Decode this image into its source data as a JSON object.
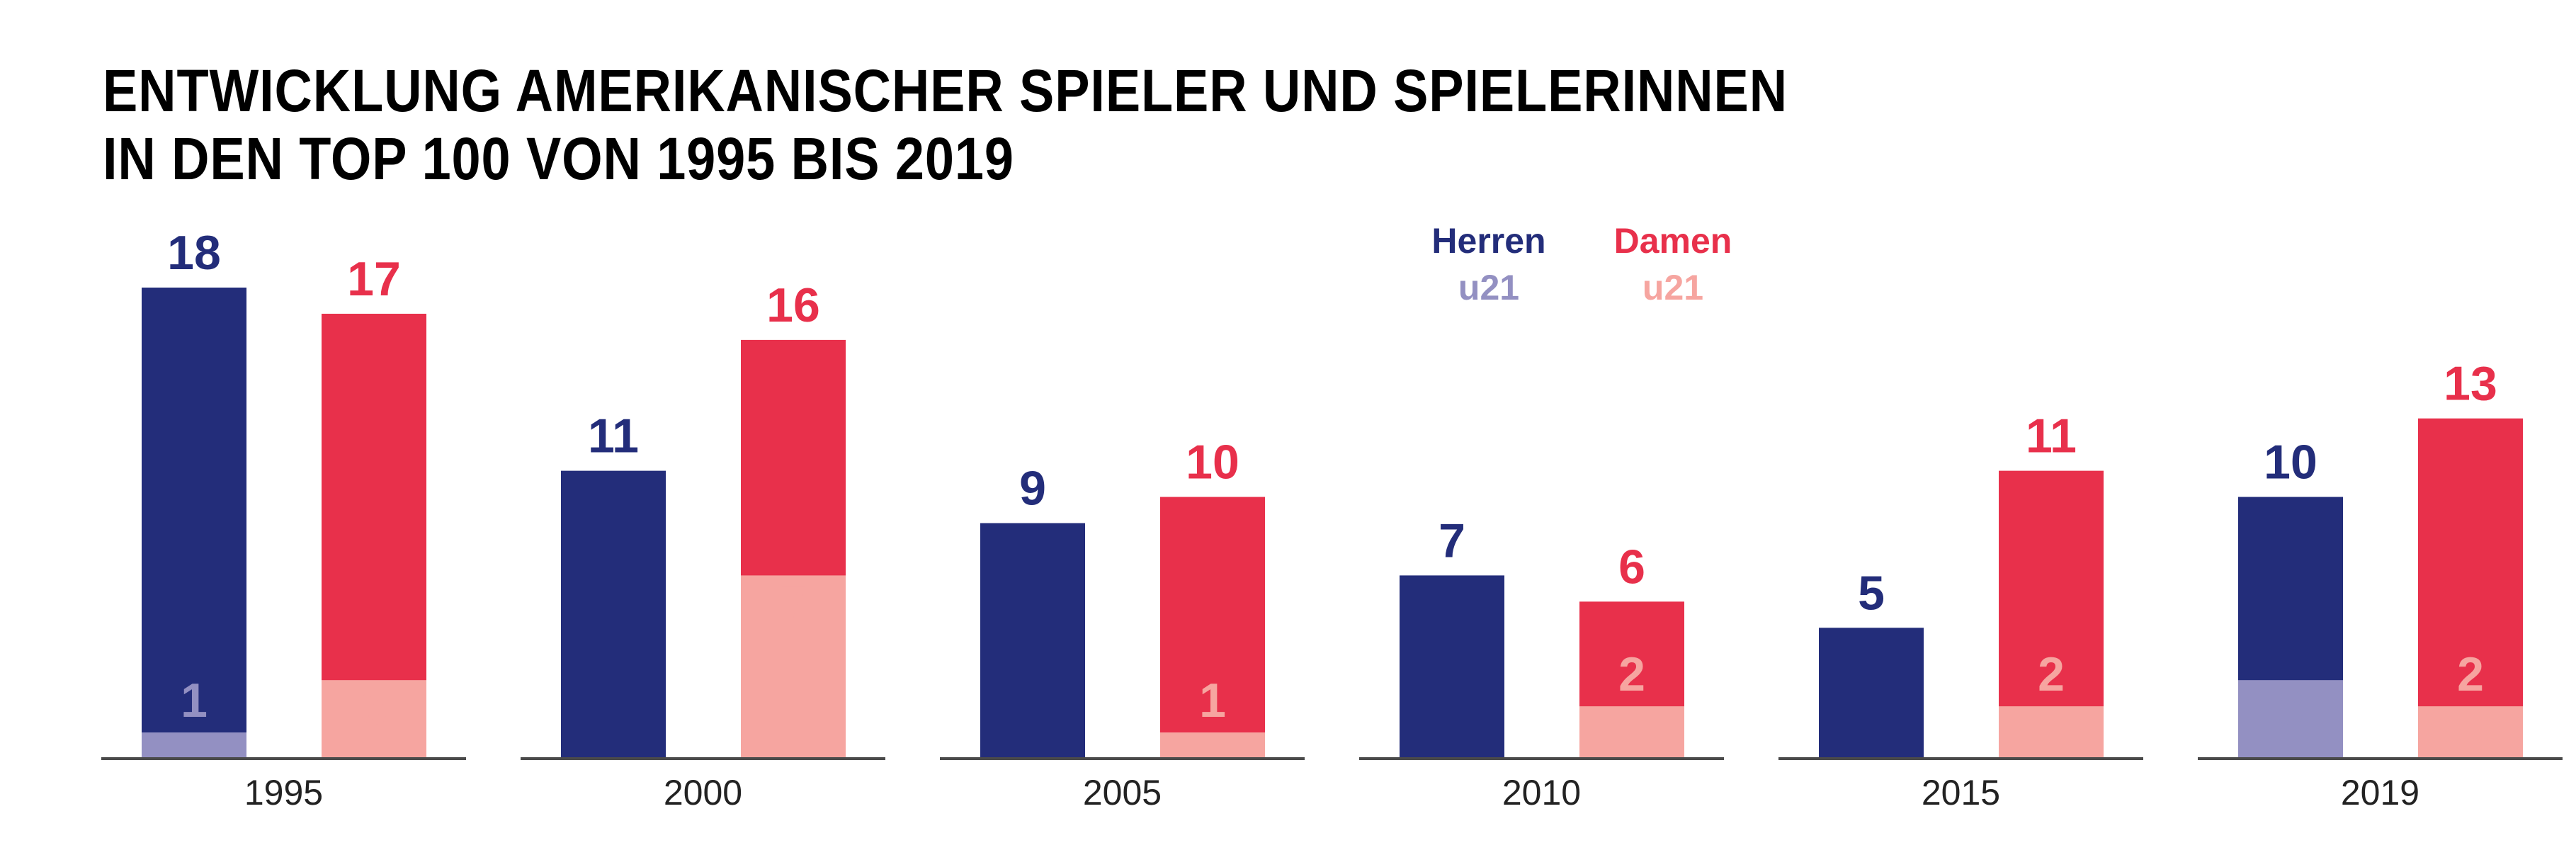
{
  "title_lines": [
    "ENTWICKLUNG AMERIKANISCHER SPIELER UND SPIELERINNEN",
    "IN DEN TOP 100 VON 1995 BIS 2019"
  ],
  "legend": {
    "herren": "Herren",
    "herren_u21": "u21",
    "damen": "Damen",
    "damen_u21": "u21"
  },
  "colors": {
    "herren": "#232d7a",
    "herren_u21": "#9390c2",
    "damen": "#e8304b",
    "damen_u21": "#f6a5a0",
    "axis": "#4a4a4a",
    "year_label": "#222222"
  },
  "chart_data": {
    "type": "bar",
    "categories": [
      "1995",
      "2000",
      "2005",
      "2010",
      "2015",
      "2019"
    ],
    "series": [
      {
        "name": "Herren",
        "values": [
          18,
          11,
          9,
          7,
          5,
          10
        ]
      },
      {
        "name": "Herren u21",
        "values": [
          1,
          0,
          0,
          0,
          0,
          3
        ]
      },
      {
        "name": "Damen",
        "values": [
          17,
          16,
          10,
          6,
          11,
          13
        ]
      },
      {
        "name": "Damen u21",
        "values": [
          3,
          7,
          1,
          2,
          2,
          2
        ]
      }
    ],
    "ylim": [
      0,
      18
    ],
    "grid": false
  }
}
